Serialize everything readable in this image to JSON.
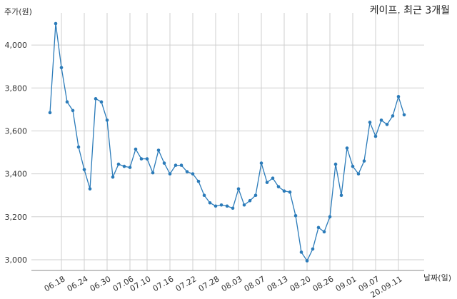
{
  "chart_data": {
    "type": "line",
    "title": "케이프, 최근 3개월",
    "ylabel": "주가(원)",
    "xlabel": "날짜(일)",
    "grid": true,
    "ylim": [
      2950,
      4150
    ],
    "yticks": [
      3000,
      3200,
      3400,
      3600,
      3800,
      4000
    ],
    "ytick_labels": [
      "3,000",
      "3,200",
      "3,400",
      "3,600",
      "3,800",
      "4,000"
    ],
    "xtick_labels": [
      "06.18",
      "06.24",
      "06.30",
      "07.06",
      "07.10",
      "07.16",
      "07.22",
      "07.28",
      "08.03",
      "08.07",
      "08.13",
      "08.20",
      "08.26",
      "09.01",
      "09.07",
      "20.09.11"
    ],
    "xtick_index": [
      2,
      6,
      10,
      14,
      17,
      21,
      25,
      29,
      33,
      37,
      41,
      45,
      49,
      53,
      57,
      61
    ],
    "series": [
      {
        "color": "#2b7bb9",
        "values": [
          3685,
          4100,
          3895,
          3735,
          3695,
          3525,
          3420,
          3330,
          3750,
          3735,
          3650,
          3385,
          3445,
          3435,
          3430,
          3515,
          3470,
          3470,
          3405,
          3510,
          3450,
          3400,
          3440,
          3440,
          3410,
          3400,
          3365,
          3300,
          3265,
          3250,
          3255,
          3250,
          3240,
          3330,
          3255,
          3275,
          3300,
          3450,
          3360,
          3380,
          3340,
          3320,
          3315,
          3205,
          3035,
          2995,
          3050,
          3150,
          3130,
          3200,
          3445,
          3300,
          3520,
          3435,
          3400,
          3460,
          3640,
          3575,
          3650,
          3630,
          3670,
          3760,
          3675
        ]
      }
    ]
  }
}
